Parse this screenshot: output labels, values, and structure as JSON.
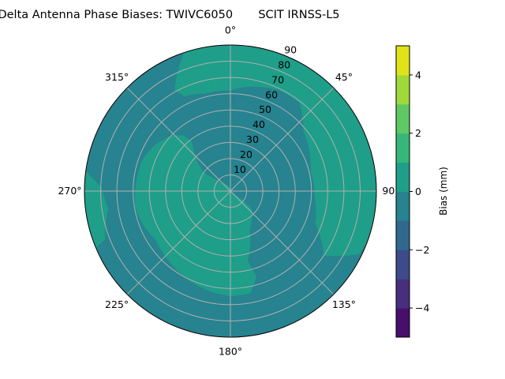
{
  "chart_data": {
    "type": "polar-contour",
    "title": "Delta Antenna Phase Biases: TWIVC6050       SCIT IRNSS-L5",
    "angular_ticks": [
      {
        "angle": 0,
        "label": "0°"
      },
      {
        "angle": 45,
        "label": "45°"
      },
      {
        "angle": 90,
        "label": "90°"
      },
      {
        "angle": 135,
        "label": "135°"
      },
      {
        "angle": 180,
        "label": "180°"
      },
      {
        "angle": 225,
        "label": "225°"
      },
      {
        "angle": 270,
        "label": "270°"
      },
      {
        "angle": 315,
        "label": "315°"
      }
    ],
    "angular_direction": "clockwise, 0° at top",
    "radial_ticks": [
      10,
      20,
      30,
      40,
      50,
      60,
      70,
      80,
      90
    ],
    "radial_range": [
      0,
      90
    ],
    "grid": true,
    "background_level": [
      -1,
      0
    ],
    "regions": [
      {
        "level": [
          0,
          1
        ],
        "points": [
          [
            -19,
            89
          ],
          [
            -23,
            82
          ],
          [
            -29,
            71
          ],
          [
            -26,
            65
          ],
          [
            -14.5,
            62
          ],
          [
            0,
            62
          ],
          [
            9,
            65
          ],
          [
            25.5,
            69
          ],
          [
            38,
            69
          ],
          [
            45,
            63
          ],
          [
            51,
            58
          ],
          [
            76,
            51
          ],
          [
            94,
            52
          ],
          [
            111,
            56
          ],
          [
            124.6,
            70
          ],
          [
            116.3,
            88
          ],
          [
            110.6,
            90
          ],
          [
            100,
            90
          ],
          [
            80,
            90
          ],
          [
            60,
            90
          ],
          [
            40,
            90
          ],
          [
            20,
            90
          ],
          [
            0,
            90
          ],
          [
            -19,
            90
          ]
        ]
      },
      {
        "level": [
          0,
          1
        ],
        "points": [
          [
            0,
            0
          ],
          [
            -49,
            7.7
          ],
          [
            -55.5,
            18.9
          ],
          [
            -46,
            29.5
          ],
          [
            -38,
            38.3
          ],
          [
            -40,
            44.6
          ],
          [
            -47,
            50
          ],
          [
            -58.4,
            54.5
          ],
          [
            -71,
            57.6
          ],
          [
            -87.5,
            58.6
          ],
          [
            -100,
            59.5
          ],
          [
            -110,
            58
          ],
          [
            -123,
            55
          ],
          [
            -138,
            57.4
          ],
          [
            -151.5,
            59.8
          ],
          [
            -162,
            62
          ],
          [
            -180,
            64.7
          ],
          [
            -191,
            64
          ],
          [
            -197,
            55
          ],
          [
            -194,
            44
          ],
          [
            -207,
            26
          ],
          [
            -231,
            16.5
          ],
          [
            -235,
            6.8
          ],
          [
            -235,
            0
          ]
        ]
      },
      {
        "level": [
          0,
          1
        ],
        "points": [
          [
            278,
            90
          ],
          [
            272,
            79.6
          ],
          [
            262,
            76
          ],
          [
            249,
            82.7
          ],
          [
            247,
            90
          ],
          [
            257,
            90
          ],
          [
            267,
            90
          ],
          [
            278,
            90
          ]
        ]
      }
    ],
    "colorbar": {
      "label": "Bias (mm)",
      "levels": [
        -5,
        -4,
        -3,
        -2,
        -1,
        0,
        1,
        2,
        3,
        4,
        5
      ],
      "ticks": [
        -4,
        -2,
        0,
        2,
        4
      ],
      "tick_labels": [
        "−4",
        "−2",
        "0",
        "2",
        "4"
      ],
      "colors": [
        "#46106a",
        "#472f7d",
        "#3e4b8a",
        "#31688e",
        "#26838f",
        "#1f9e89",
        "#35b779",
        "#5ec962",
        "#9fda3a",
        "#e0e318"
      ]
    }
  }
}
